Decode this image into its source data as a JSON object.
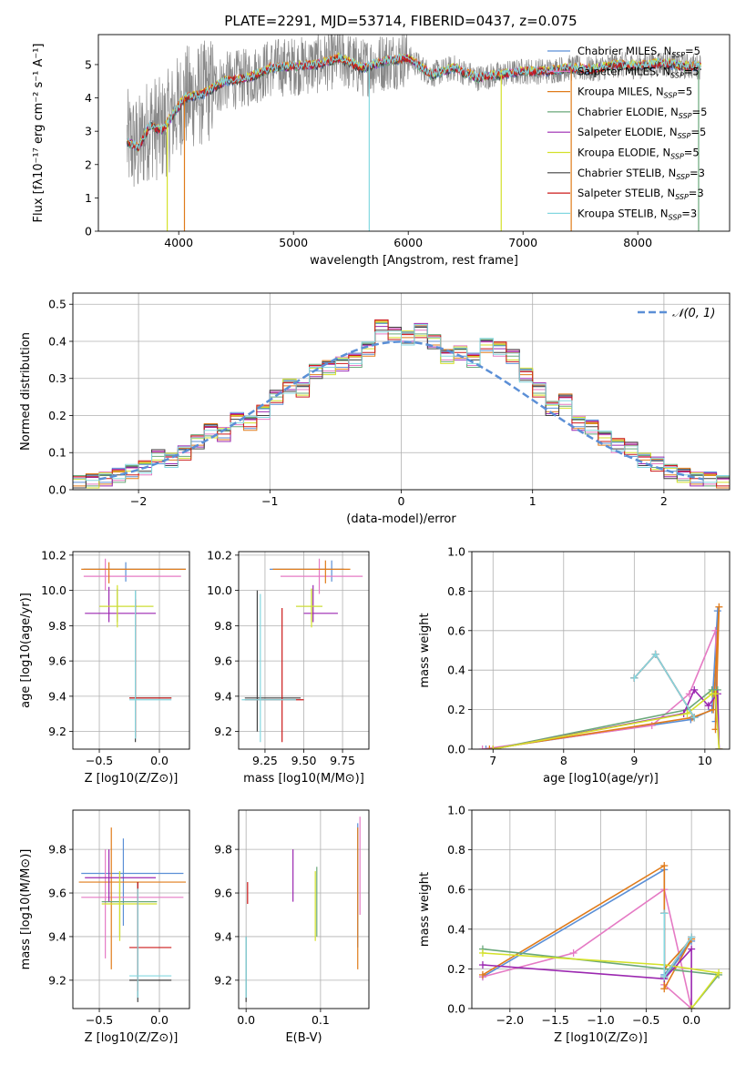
{
  "colors": {
    "chabrier_miles": "#5b8fd6",
    "salpeter_miles": "#e57ac4",
    "kroupa_miles": "#e07b1a",
    "chabrier_elodie": "#6aa87a",
    "salpeter_elodie": "#9b27b0",
    "kroupa_elodie": "#d4e12a",
    "chabrier_stelib": "#404040",
    "salpeter_stelib": "#cc1a1a",
    "kroupa_stelib": "#84d8e0",
    "spectrum": "#888888",
    "gaussian": "#5b8fd6",
    "grid": "#b0b0b0"
  },
  "chart_data": [
    {
      "id": "spectrum",
      "type": "line",
      "title": "PLATE=2291, MJD=53714, FIBERID=0437, z=0.075",
      "xlabel": "wavelength [Angstrom, rest frame]",
      "ylabel": "Flux [fλ10⁻¹⁷ erg cm⁻² s⁻¹ A⁻¹]",
      "xlim": [
        3300,
        8800
      ],
      "ylim": [
        0,
        5.9
      ],
      "xticks": [
        "4000",
        "5000",
        "6000",
        "7000",
        "8000"
      ],
      "yticks": [
        "0",
        "1",
        "2",
        "3",
        "4",
        "5"
      ],
      "grid": false,
      "legend_position": "top-right",
      "series": [
        {
          "name": "Chabrier MILES, N_SSP=5",
          "color_key": "chabrier_miles"
        },
        {
          "name": "Salpeter MILES, N_SSP=5",
          "color_key": "salpeter_miles"
        },
        {
          "name": "Kroupa MILES, N_SSP=5",
          "color_key": "kroupa_miles"
        },
        {
          "name": "Chabrier ELODIE, N_SSP=5",
          "color_key": "chabrier_elodie"
        },
        {
          "name": "Salpeter ELODIE, N_SSP=5",
          "color_key": "salpeter_elodie"
        },
        {
          "name": "Kroupa ELODIE, N_SSP=5",
          "color_key": "kroupa_elodie"
        },
        {
          "name": "Chabrier STELIB, N_SSP=3",
          "color_key": "chabrier_stelib"
        },
        {
          "name": "Salpeter STELIB, N_SSP=3",
          "color_key": "salpeter_stelib"
        },
        {
          "name": "Kroupa STELIB, N_SSP=3",
          "color_key": "kroupa_stelib"
        }
      ],
      "model_continuum": {
        "x": [
          3550,
          3650,
          3750,
          3850,
          3950,
          4050,
          4200,
          4400,
          4600,
          4800,
          5000,
          5200,
          5400,
          5600,
          5800,
          6000,
          6200,
          6400,
          6600,
          6800,
          7000,
          7200,
          7400,
          7600,
          7800,
          8000,
          8200,
          8400,
          8550
        ],
        "y": [
          2.7,
          2.5,
          3.2,
          3.0,
          3.5,
          4.0,
          4.1,
          4.5,
          4.6,
          4.9,
          4.95,
          5.0,
          5.2,
          4.9,
          5.1,
          5.2,
          4.7,
          4.9,
          4.6,
          4.7,
          4.8,
          4.8,
          4.9,
          4.85,
          5.0,
          4.95,
          5.05,
          4.95,
          4.95
        ]
      }
    },
    {
      "id": "residuals",
      "type": "line",
      "xlabel": "(data-model)/error",
      "ylabel": "Normed distribution",
      "xlim": [
        -2.5,
        2.5
      ],
      "ylim": [
        0,
        0.53
      ],
      "xticks": [
        "−2",
        "−1",
        "0",
        "1",
        "2"
      ],
      "yticks": [
        "0.0",
        "0.1",
        "0.2",
        "0.3",
        "0.4",
        "0.5"
      ],
      "grid": true,
      "legend_position": "top-right",
      "legend_label": "𝒩(0, 1)",
      "bin_edges": [
        -2.5,
        -2.4,
        -2.3,
        -2.2,
        -2.1,
        -2.0,
        -1.9,
        -1.8,
        -1.7,
        -1.6,
        -1.5,
        -1.4,
        -1.3,
        -1.2,
        -1.1,
        -1.0,
        -0.9,
        -0.8,
        -0.7,
        -0.6,
        -0.5,
        -0.4,
        -0.3,
        -0.2,
        -0.1,
        0.0,
        0.1,
        0.2,
        0.3,
        0.4,
        0.5,
        0.6,
        0.7,
        0.8,
        0.9,
        1.0,
        1.1,
        1.2,
        1.3,
        1.4,
        1.5,
        1.6,
        1.7,
        1.8,
        1.9,
        2.0,
        2.1,
        2.2,
        2.3,
        2.4,
        2.5
      ],
      "histogram": [
        0.02,
        0.025,
        0.03,
        0.04,
        0.05,
        0.06,
        0.09,
        0.08,
        0.1,
        0.13,
        0.16,
        0.15,
        0.19,
        0.18,
        0.21,
        0.25,
        0.28,
        0.27,
        0.32,
        0.33,
        0.34,
        0.35,
        0.38,
        0.44,
        0.42,
        0.41,
        0.43,
        0.4,
        0.36,
        0.37,
        0.35,
        0.39,
        0.38,
        0.36,
        0.31,
        0.27,
        0.22,
        0.24,
        0.18,
        0.17,
        0.14,
        0.12,
        0.11,
        0.08,
        0.07,
        0.05,
        0.04,
        0.03,
        0.03,
        0.02
      ],
      "histogram_offsets": [
        0,
        0.012,
        -0.01,
        0.018,
        -0.015,
        0.008,
        -0.02,
        0.015,
        0.01
      ],
      "gaussian": {
        "mean": 0,
        "sigma": 1
      }
    },
    {
      "id": "age_vs_z",
      "type": "scatter",
      "xlabel": "Z [log10(Z/Z⊙)]",
      "ylabel": "age  [log10(age/yr)]",
      "xlim": [
        -0.72,
        0.25
      ],
      "ylim": [
        9.1,
        10.22
      ],
      "xticks": [
        "−0.5",
        "0.0"
      ],
      "yticks": [
        "9.2",
        "9.4",
        "9.6",
        "9.8",
        "10.0",
        "10.2"
      ],
      "grid": true,
      "crosses": [
        {
          "color_key": "chabrier_miles",
          "x": -0.28,
          "y": 10.12,
          "x_lo": -0.63,
          "x_hi": 0.22,
          "y_lo": 10.05,
          "y_hi": 10.16
        },
        {
          "color_key": "salpeter_miles",
          "x": -0.45,
          "y": 10.08,
          "x_lo": -0.63,
          "x_hi": 0.18,
          "y_lo": 10.0,
          "y_hi": 10.18
        },
        {
          "color_key": "kroupa_miles",
          "x": -0.42,
          "y": 10.12,
          "x_lo": -0.65,
          "x_hi": 0.22,
          "y_lo": 10.04,
          "y_hi": 10.16
        },
        {
          "color_key": "chabrier_elodie",
          "x": -0.35,
          "y": 9.91,
          "x_lo": -0.5,
          "x_hi": -0.05,
          "y_lo": 9.82,
          "y_hi": 10.01
        },
        {
          "color_key": "salpeter_elodie",
          "x": -0.42,
          "y": 9.87,
          "x_lo": -0.62,
          "x_hi": -0.03,
          "y_lo": 9.82,
          "y_hi": 10.02
        },
        {
          "color_key": "kroupa_elodie",
          "x": -0.35,
          "y": 9.91,
          "x_lo": -0.5,
          "x_hi": -0.05,
          "y_lo": 9.79,
          "y_hi": 10.03
        },
        {
          "color_key": "chabrier_stelib",
          "x": -0.2,
          "y": 9.39,
          "x_lo": -0.25,
          "x_hi": 0.1,
          "y_lo": 9.14,
          "y_hi": 10.0
        },
        {
          "color_key": "salpeter_stelib",
          "x": -0.2,
          "y": 9.39,
          "x_lo": -0.25,
          "x_hi": 0.1,
          "y_lo": 9.17,
          "y_hi": 9.95
        },
        {
          "color_key": "kroupa_stelib",
          "x": -0.2,
          "y": 9.38,
          "x_lo": -0.25,
          "x_hi": 0.1,
          "y_lo": 9.16,
          "y_hi": 10.0
        }
      ]
    },
    {
      "id": "age_vs_mass",
      "type": "scatter",
      "xlabel": "mass [log10(M/M⊙)]",
      "ylabel": "",
      "xlim": [
        9.08,
        9.92
      ],
      "ylim": [
        9.1,
        10.22
      ],
      "xticks": [
        "9.25",
        "9.50",
        "9.75"
      ],
      "yticks": [
        "9.2",
        "9.4",
        "9.6",
        "9.8",
        "10.0",
        "10.2"
      ],
      "grid": true,
      "crosses": [
        {
          "color_key": "chabrier_miles",
          "x": 9.68,
          "y": 10.12,
          "x_lo": 9.28,
          "x_hi": 9.76,
          "y_lo": 10.05,
          "y_hi": 10.17
        },
        {
          "color_key": "salpeter_miles",
          "x": 9.6,
          "y": 10.08,
          "x_lo": 9.35,
          "x_hi": 9.88,
          "y_lo": 9.98,
          "y_hi": 10.18
        },
        {
          "color_key": "kroupa_miles",
          "x": 9.64,
          "y": 10.12,
          "x_lo": 9.3,
          "x_hi": 9.8,
          "y_lo": 10.04,
          "y_hi": 10.17
        },
        {
          "color_key": "chabrier_elodie",
          "x": 9.55,
          "y": 9.91,
          "x_lo": 9.45,
          "x_hi": 9.62,
          "y_lo": 9.82,
          "y_hi": 10.01
        },
        {
          "color_key": "salpeter_elodie",
          "x": 9.56,
          "y": 9.87,
          "x_lo": 9.5,
          "x_hi": 9.72,
          "y_lo": 9.82,
          "y_hi": 10.03
        },
        {
          "color_key": "kroupa_elodie",
          "x": 9.55,
          "y": 9.91,
          "x_lo": 9.45,
          "x_hi": 9.62,
          "y_lo": 9.79,
          "y_hi": 10.01
        },
        {
          "color_key": "chabrier_stelib",
          "x": 9.2,
          "y": 9.39,
          "x_lo": 9.12,
          "x_hi": 9.48,
          "y_lo": 9.2,
          "y_hi": 10.0
        },
        {
          "color_key": "salpeter_stelib",
          "x": 9.36,
          "y": 9.38,
          "x_lo": 9.12,
          "x_hi": 9.5,
          "y_lo": 9.14,
          "y_hi": 9.9
        },
        {
          "color_key": "kroupa_stelib",
          "x": 9.22,
          "y": 9.38,
          "x_lo": 9.1,
          "x_hi": 9.45,
          "y_lo": 9.14,
          "y_hi": 9.98
        }
      ]
    },
    {
      "id": "weight_vs_age",
      "type": "line",
      "xlabel": "age  [log10(age/yr)]",
      "ylabel": "mass weight",
      "xlim": [
        6.7,
        10.35
      ],
      "ylim": [
        0,
        1.0
      ],
      "xticks": [
        "7",
        "8",
        "9",
        "10"
      ],
      "yticks": [
        "0.0",
        "0.2",
        "0.4",
        "0.6",
        "0.8",
        "1.0"
      ],
      "grid": true,
      "series": [
        {
          "color_key": "chabrier_miles",
          "x": [
            6.9,
            9.8,
            10.1,
            10.18,
            10.15
          ],
          "y": [
            0.0,
            0.15,
            0.2,
            0.7,
            0.14
          ]
        },
        {
          "color_key": "salpeter_miles",
          "x": [
            6.85,
            9.25,
            9.78,
            10.15,
            10.2
          ],
          "y": [
            0.0,
            0.12,
            0.28,
            0.6,
            0.0
          ]
        },
        {
          "color_key": "kroupa_miles",
          "x": [
            6.95,
            9.82,
            10.12,
            10.2,
            10.15
          ],
          "y": [
            0.0,
            0.16,
            0.2,
            0.72,
            0.1
          ]
        },
        {
          "color_key": "chabrier_elodie",
          "x": [
            7.0,
            9.75,
            10.1,
            10.18,
            10.2
          ],
          "y": [
            0.0,
            0.2,
            0.3,
            0.3,
            0.0
          ]
        },
        {
          "color_key": "salpeter_elodie",
          "x": [
            7.0,
            9.7,
            9.85,
            10.05,
            10.18,
            10.2
          ],
          "y": [
            0.0,
            0.18,
            0.3,
            0.22,
            0.28,
            0.0
          ]
        },
        {
          "color_key": "kroupa_elodie",
          "x": [
            7.0,
            9.75,
            10.1,
            10.15,
            10.2
          ],
          "y": [
            0.0,
            0.18,
            0.28,
            0.28,
            0.0
          ]
        },
        {
          "color_key": "chabrier_stelib",
          "x": [
            9.0,
            9.3,
            9.85
          ],
          "y": [
            0.36,
            0.48,
            0.16
          ]
        },
        {
          "color_key": "salpeter_stelib",
          "x": [
            9.0,
            9.3,
            9.85
          ],
          "y": [
            0.36,
            0.48,
            0.16
          ]
        },
        {
          "color_key": "kroupa_stelib",
          "x": [
            9.0,
            9.3,
            9.85
          ],
          "y": [
            0.36,
            0.48,
            0.16
          ]
        }
      ]
    },
    {
      "id": "mass_vs_z",
      "type": "scatter",
      "xlabel": "Z [log10(Z/Z⊙)]",
      "ylabel": "mass [log10(M/M⊙)]",
      "xlim": [
        -0.72,
        0.25
      ],
      "ylim": [
        9.07,
        9.98
      ],
      "xticks": [
        "−0.5",
        "0.0"
      ],
      "yticks": [
        "9.2",
        "9.4",
        "9.6",
        "9.8"
      ],
      "grid": true,
      "crosses": [
        {
          "color_key": "chabrier_miles",
          "x": -0.3,
          "y": 9.69,
          "x_lo": -0.65,
          "x_hi": 0.2,
          "y_lo": 9.45,
          "y_hi": 9.85
        },
        {
          "color_key": "salpeter_miles",
          "x": -0.45,
          "y": 9.58,
          "x_lo": -0.65,
          "x_hi": 0.2,
          "y_lo": 9.3,
          "y_hi": 9.8
        },
        {
          "color_key": "kroupa_miles",
          "x": -0.4,
          "y": 9.65,
          "x_lo": -0.67,
          "x_hi": 0.22,
          "y_lo": 9.25,
          "y_hi": 9.9
        },
        {
          "color_key": "chabrier_elodie",
          "x": -0.33,
          "y": 9.56,
          "x_lo": -0.48,
          "x_hi": -0.02,
          "y_lo": 9.4,
          "y_hi": 9.7
        },
        {
          "color_key": "salpeter_elodie",
          "x": -0.42,
          "y": 9.67,
          "x_lo": -0.62,
          "x_hi": -0.03,
          "y_lo": 9.56,
          "y_hi": 9.8
        },
        {
          "color_key": "kroupa_elodie",
          "x": -0.33,
          "y": 9.55,
          "x_lo": -0.48,
          "x_hi": -0.02,
          "y_lo": 9.38,
          "y_hi": 9.7
        },
        {
          "color_key": "chabrier_stelib",
          "x": -0.18,
          "y": 9.2,
          "x_lo": -0.25,
          "x_hi": 0.1,
          "y_lo": 9.1,
          "y_hi": 9.65
        },
        {
          "color_key": "salpeter_stelib",
          "x": -0.18,
          "y": 9.35,
          "x_lo": -0.25,
          "x_hi": 0.1,
          "y_lo": 9.15,
          "y_hi": 9.65
        },
        {
          "color_key": "kroupa_stelib",
          "x": -0.18,
          "y": 9.22,
          "x_lo": -0.25,
          "x_hi": 0.1,
          "y_lo": 9.12,
          "y_hi": 9.62
        }
      ]
    },
    {
      "id": "mass_vs_ebv",
      "type": "scatter",
      "xlabel": "E(B-V)",
      "ylabel": "",
      "xlim": [
        -0.01,
        0.165
      ],
      "ylim": [
        9.07,
        9.98
      ],
      "xticks": [
        "0.0",
        "0.1"
      ],
      "yticks": [
        "9.2",
        "9.4",
        "9.6",
        "9.8"
      ],
      "grid": true,
      "crosses": [
        {
          "color_key": "chabrier_miles",
          "x": 0.15,
          "y": 9.5,
          "x_lo": 0.15,
          "x_hi": 0.15,
          "y_lo": 9.35,
          "y_hi": 9.92
        },
        {
          "color_key": "salpeter_miles",
          "x": 0.153,
          "y": 9.75,
          "x_lo": 0.153,
          "x_hi": 0.153,
          "y_lo": 9.5,
          "y_hi": 9.95
        },
        {
          "color_key": "kroupa_miles",
          "x": 0.15,
          "y": 9.6,
          "x_lo": 0.15,
          "x_hi": 0.15,
          "y_lo": 9.25,
          "y_hi": 9.9
        },
        {
          "color_key": "chabrier_elodie",
          "x": 0.095,
          "y": 9.55,
          "x_lo": 0.095,
          "x_hi": 0.095,
          "y_lo": 9.4,
          "y_hi": 9.72
        },
        {
          "color_key": "salpeter_elodie",
          "x": 0.063,
          "y": 9.68,
          "x_lo": 0.063,
          "x_hi": 0.063,
          "y_lo": 9.56,
          "y_hi": 9.8
        },
        {
          "color_key": "kroupa_elodie",
          "x": 0.093,
          "y": 9.55,
          "x_lo": 0.093,
          "x_hi": 0.093,
          "y_lo": 9.38,
          "y_hi": 9.7
        },
        {
          "color_key": "chabrier_stelib",
          "x": 0.0,
          "y": 9.2,
          "x_lo": 0.0,
          "x_hi": 0.0,
          "y_lo": 9.1,
          "y_hi": 9.4
        },
        {
          "color_key": "salpeter_stelib",
          "x": 0.002,
          "y": 9.6,
          "x_lo": 0.002,
          "x_hi": 0.002,
          "y_lo": 9.55,
          "y_hi": 9.65
        },
        {
          "color_key": "kroupa_stelib",
          "x": 0.0,
          "y": 9.22,
          "x_lo": 0.0,
          "x_hi": 0.0,
          "y_lo": 9.12,
          "y_hi": 9.4
        }
      ]
    },
    {
      "id": "weight_vs_z",
      "type": "line",
      "xlabel": "Z [log10(Z/Z⊙)]",
      "ylabel": "mass weight",
      "xlim": [
        -2.42,
        0.42
      ],
      "ylim": [
        0,
        1.0
      ],
      "xticks": [
        "−2.0",
        "−1.5",
        "−1.0",
        "−0.5",
        "0.0"
      ],
      "yticks": [
        "0.0",
        "0.2",
        "0.4",
        "0.6",
        "0.8",
        "1.0"
      ],
      "grid": true,
      "series": [
        {
          "color_key": "chabrier_miles",
          "x": [
            -2.3,
            -0.3,
            -0.3,
            0.0,
            -0.3
          ],
          "y": [
            0.16,
            0.7,
            0.15,
            0.34,
            0.17
          ]
        },
        {
          "color_key": "salpeter_miles",
          "x": [
            -2.3,
            -1.3,
            -0.3,
            0.0,
            -0.3
          ],
          "y": [
            0.16,
            0.28,
            0.6,
            0.0,
            0.12
          ]
        },
        {
          "color_key": "kroupa_miles",
          "x": [
            -2.3,
            -0.3,
            -0.3,
            0.0,
            -0.3
          ],
          "y": [
            0.17,
            0.72,
            0.1,
            0.35,
            0.2
          ]
        },
        {
          "color_key": "chabrier_elodie",
          "x": [
            -2.3,
            -0.3,
            0.3,
            0.0
          ],
          "y": [
            0.3,
            0.2,
            0.17,
            0.0
          ]
        },
        {
          "color_key": "salpeter_elodie",
          "x": [
            -2.3,
            -0.3,
            0.0,
            0.0
          ],
          "y": [
            0.22,
            0.15,
            0.3,
            0.0
          ]
        },
        {
          "color_key": "kroupa_elodie",
          "x": [
            -2.3,
            -0.3,
            0.3,
            0.0
          ],
          "y": [
            0.28,
            0.22,
            0.18,
            0.0
          ]
        },
        {
          "color_key": "chabrier_stelib",
          "x": [
            -0.3,
            -0.3,
            0.0
          ],
          "y": [
            0.48,
            0.16,
            0.36
          ]
        },
        {
          "color_key": "salpeter_stelib",
          "x": [
            -0.3,
            -0.3,
            0.0
          ],
          "y": [
            0.48,
            0.16,
            0.36
          ]
        },
        {
          "color_key": "kroupa_stelib",
          "x": [
            -0.3,
            -0.3,
            0.0
          ],
          "y": [
            0.48,
            0.16,
            0.36
          ]
        }
      ]
    }
  ]
}
